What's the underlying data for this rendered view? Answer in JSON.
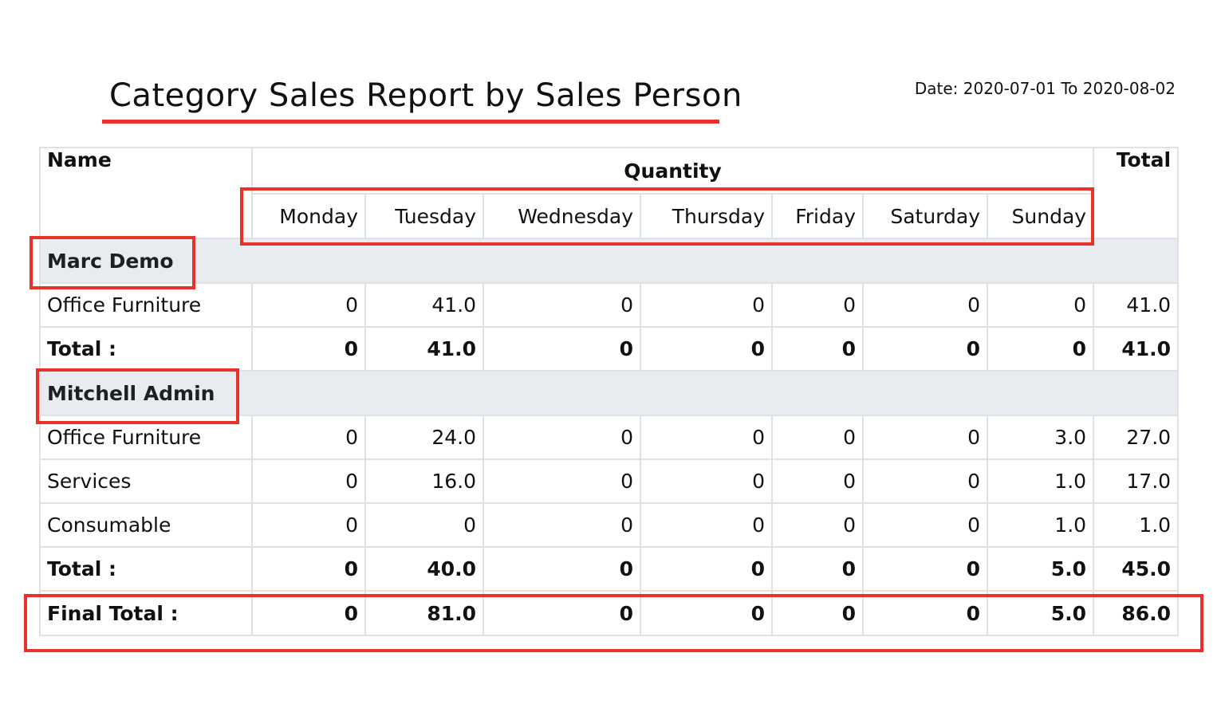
{
  "report": {
    "title": "Category Sales Report by Sales Person",
    "date_range": "Date: 2020-07-01 To 2020-08-02"
  },
  "table": {
    "name_header": "Name",
    "quantity_header": "Quantity",
    "total_header": "Total",
    "days": [
      "Monday",
      "Tuesday",
      "Wednesday",
      "Thursday",
      "Friday",
      "Saturday",
      "Sunday"
    ],
    "groups": [
      {
        "name": "Marc Demo",
        "rows": [
          {
            "category": "Office Furniture",
            "values": [
              "0",
              "41.0",
              "0",
              "0",
              "0",
              "0",
              "0"
            ],
            "total": "41.0"
          }
        ],
        "subtotal": {
          "label": "Total :",
          "values": [
            "0",
            "41.0",
            "0",
            "0",
            "0",
            "0",
            "0"
          ],
          "total": "41.0"
        }
      },
      {
        "name": "Mitchell Admin",
        "rows": [
          {
            "category": "Office Furniture",
            "values": [
              "0",
              "24.0",
              "0",
              "0",
              "0",
              "0",
              "3.0"
            ],
            "total": "27.0"
          },
          {
            "category": "Services",
            "values": [
              "0",
              "16.0",
              "0",
              "0",
              "0",
              "0",
              "1.0"
            ],
            "total": "17.0"
          },
          {
            "category": "Consumable",
            "values": [
              "0",
              "0",
              "0",
              "0",
              "0",
              "0",
              "1.0"
            ],
            "total": "1.0"
          }
        ],
        "subtotal": {
          "label": "Total :",
          "values": [
            "0",
            "40.0",
            "0",
            "0",
            "0",
            "0",
            "5.0"
          ],
          "total": "45.0"
        }
      }
    ],
    "final": {
      "label": "Final Total :",
      "values": [
        "0",
        "81.0",
        "0",
        "0",
        "0",
        "0",
        "5.0"
      ],
      "total": "86.0"
    }
  },
  "colors": {
    "annotation": "#e8312a",
    "group_row_bg": "#e8ebef",
    "border": "#dde2e6"
  }
}
